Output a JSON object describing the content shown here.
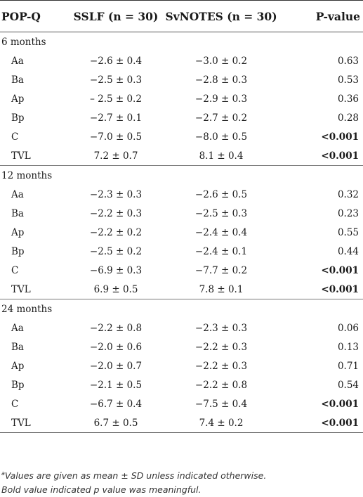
{
  "header": {
    "col1": "POP-Q",
    "col2": "SSLF (n = 30)",
    "col3": "SvNOTES (n = 30)",
    "col4": "P-value"
  },
  "sections": [
    {
      "title": "6 months",
      "rows": [
        {
          "label": "Aa",
          "sslf": "−2.6 ± 0.4",
          "svnotes": "−3.0 ± 0.2",
          "p": "0.63",
          "bold": false
        },
        {
          "label": "Ba",
          "sslf": "−2.5 ± 0.3",
          "svnotes": "−2.8 ± 0.3",
          "p": "0.53",
          "bold": false
        },
        {
          "label": "Ap",
          "sslf": "– 2.5 ± 0.2",
          "svnotes": "−2.9 ± 0.3",
          "p": "0.36",
          "bold": false
        },
        {
          "label": "Bp",
          "sslf": "−2.7 ± 0.1",
          "svnotes": "−2.7 ± 0.2",
          "p": "0.28",
          "bold": false
        },
        {
          "label": "C",
          "sslf": "−7.0 ± 0.5",
          "svnotes": "−8.0 ± 0.5",
          "p": "<0.001",
          "bold": true
        },
        {
          "label": "TVL",
          "sslf": "7.2 ± 0.7",
          "svnotes": "8.1 ± 0.4",
          "p": "<0.001",
          "bold": true
        }
      ]
    },
    {
      "title": "12 months",
      "rows": [
        {
          "label": "Aa",
          "sslf": "−2.3 ± 0.3",
          "svnotes": "−2.6 ± 0.5",
          "p": "0.32",
          "bold": false
        },
        {
          "label": "Ba",
          "sslf": "−2.2 ± 0.3",
          "svnotes": "−2.5 ± 0.3",
          "p": "0.23",
          "bold": false
        },
        {
          "label": "Ap",
          "sslf": "−2.2 ± 0.2",
          "svnotes": "−2.4 ± 0.4",
          "p": "0.55",
          "bold": false
        },
        {
          "label": "Bp",
          "sslf": "−2.5 ± 0.2",
          "svnotes": "−2.4 ± 0.1",
          "p": "0.44",
          "bold": false
        },
        {
          "label": "C",
          "sslf": "−6.9 ± 0.3",
          "svnotes": "−7.7 ± 0.2",
          "p": "<0.001",
          "bold": true
        },
        {
          "label": "TVL",
          "sslf": "6.9 ± 0.5",
          "svnotes": "7.8 ± 0.1",
          "p": "<0.001",
          "bold": true
        }
      ]
    },
    {
      "title": "24 months",
      "rows": [
        {
          "label": "Aa",
          "sslf": "−2.2 ± 0.8",
          "svnotes": "−2.3 ± 0.3",
          "p": "0.06",
          "bold": false
        },
        {
          "label": "Ba",
          "sslf": "−2.0 ± 0.6",
          "svnotes": "−2.2 ± 0.3",
          "p": "0.13",
          "bold": false
        },
        {
          "label": "Ap",
          "sslf": "−2.0 ± 0.7",
          "svnotes": "−2.2 ± 0.3",
          "p": "0.71",
          "bold": false
        },
        {
          "label": "Bp",
          "sslf": "−2.1 ± 0.5",
          "svnotes": "−2.2 ± 0.8",
          "p": "0.54",
          "bold": false
        },
        {
          "label": "C",
          "sslf": "−6.7 ± 0.4",
          "svnotes": "−7.5 ± 0.4",
          "p": "<0.001",
          "bold": true
        },
        {
          "label": "TVL",
          "sslf": "6.7 ± 0.5",
          "svnotes": "7.4 ± 0.2",
          "p": "<0.001",
          "bold": true
        }
      ]
    }
  ],
  "footnotes": {
    "marker": "a",
    "line1": "Values are given as mean ± SD unless indicated otherwise.",
    "line2": "Bold value indicated p value was meaningful."
  }
}
